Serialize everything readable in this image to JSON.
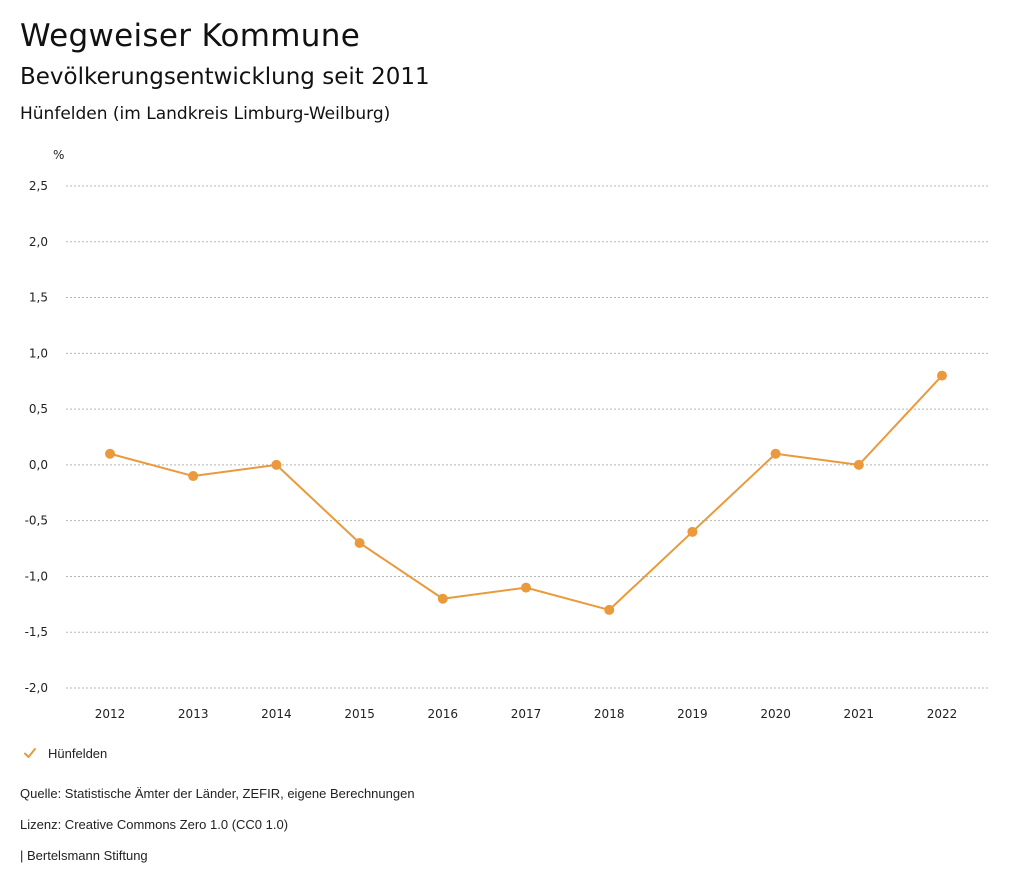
{
  "header": {
    "title": "Wegweiser Kommune",
    "subtitle": "Bevölkerungsentwicklung seit 2011",
    "region": "Hünfelden (im Landkreis Limburg-Weilburg)"
  },
  "chart_data": {
    "type": "line",
    "ylabel": "%",
    "ylim": [
      -2.0,
      2.5
    ],
    "yticks": [
      "-2,0",
      "-1,5",
      "-1,0",
      "-0,5",
      "0,0",
      "0,5",
      "1,0",
      "1,5",
      "2,0",
      "2,5"
    ],
    "ytick_values": [
      -2.0,
      -1.5,
      -1.0,
      -0.5,
      0.0,
      0.5,
      1.0,
      1.5,
      2.0,
      2.5
    ],
    "categories": [
      "2012",
      "2013",
      "2014",
      "2015",
      "2016",
      "2017",
      "2018",
      "2019",
      "2020",
      "2021",
      "2022"
    ],
    "series": [
      {
        "name": "Hünfelden",
        "color": "#ea9a3c",
        "values": [
          0.1,
          -0.1,
          0.0,
          -0.7,
          -1.2,
          -1.1,
          -1.3,
          -0.6,
          0.1,
          0.0,
          0.8
        ]
      }
    ],
    "grid": true,
    "legend_position": "bottom-left"
  },
  "legend": {
    "label": "Hünfelden",
    "icon": "check-icon",
    "color": "#ea9a3c"
  },
  "footer": {
    "source": "Quelle: Statistische Ämter der Länder, ZEFIR, eigene Berechnungen",
    "license": "Lizenz: Creative Commons Zero 1.0 (CC0 1.0)",
    "publisher": "| Bertelsmann Stiftung"
  }
}
